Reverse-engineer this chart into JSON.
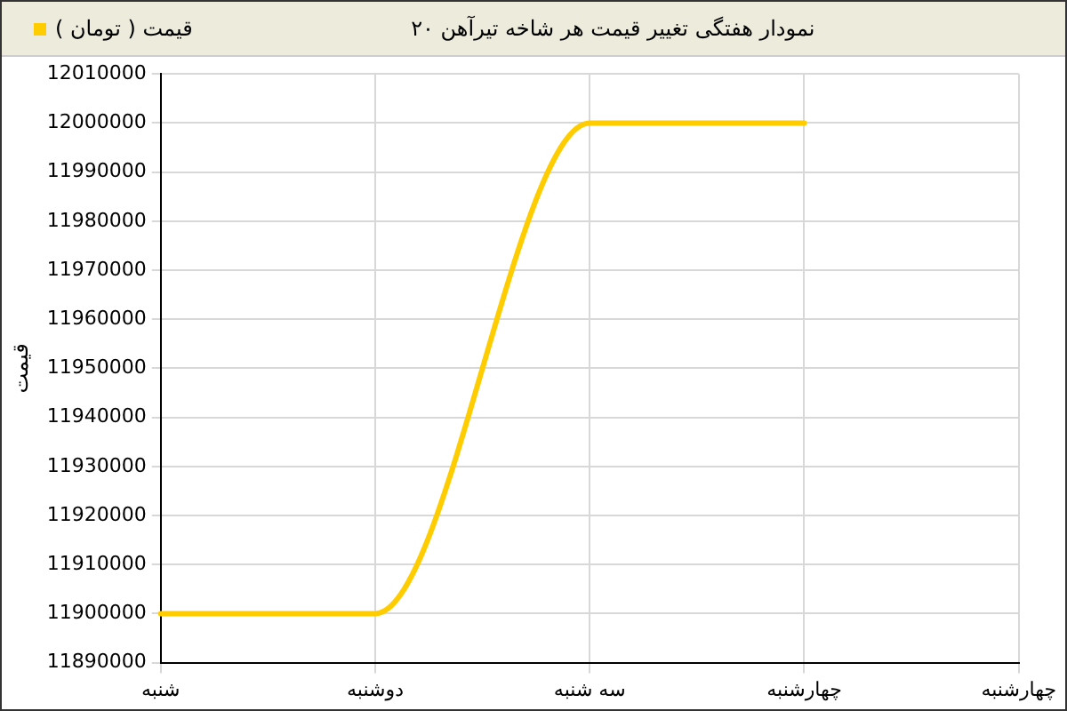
{
  "chart_data": {
    "type": "line",
    "title": "نمودار هفتگی تغییر قیمت هر شاخه تیرآهن ۲۰",
    "ylabel": "قیمت",
    "categories": [
      "شنبه",
      "دوشنبه",
      "سه شنبه",
      "چهارشنبه",
      "چهارشنبه"
    ],
    "series": [
      {
        "name": "قیمت ( تومان )",
        "color": "#ffcc00",
        "values": [
          11900000,
          11900000,
          12000000,
          12000000,
          null
        ]
      }
    ],
    "ylim": [
      11890000,
      12010000
    ],
    "yticks": [
      11890000,
      11900000,
      11910000,
      11920000,
      11930000,
      11940000,
      11950000,
      11960000,
      11970000,
      11980000,
      11990000,
      12000000,
      12010000
    ],
    "grid": true,
    "legend": "top left",
    "marker": "none",
    "line_style": "solid"
  }
}
